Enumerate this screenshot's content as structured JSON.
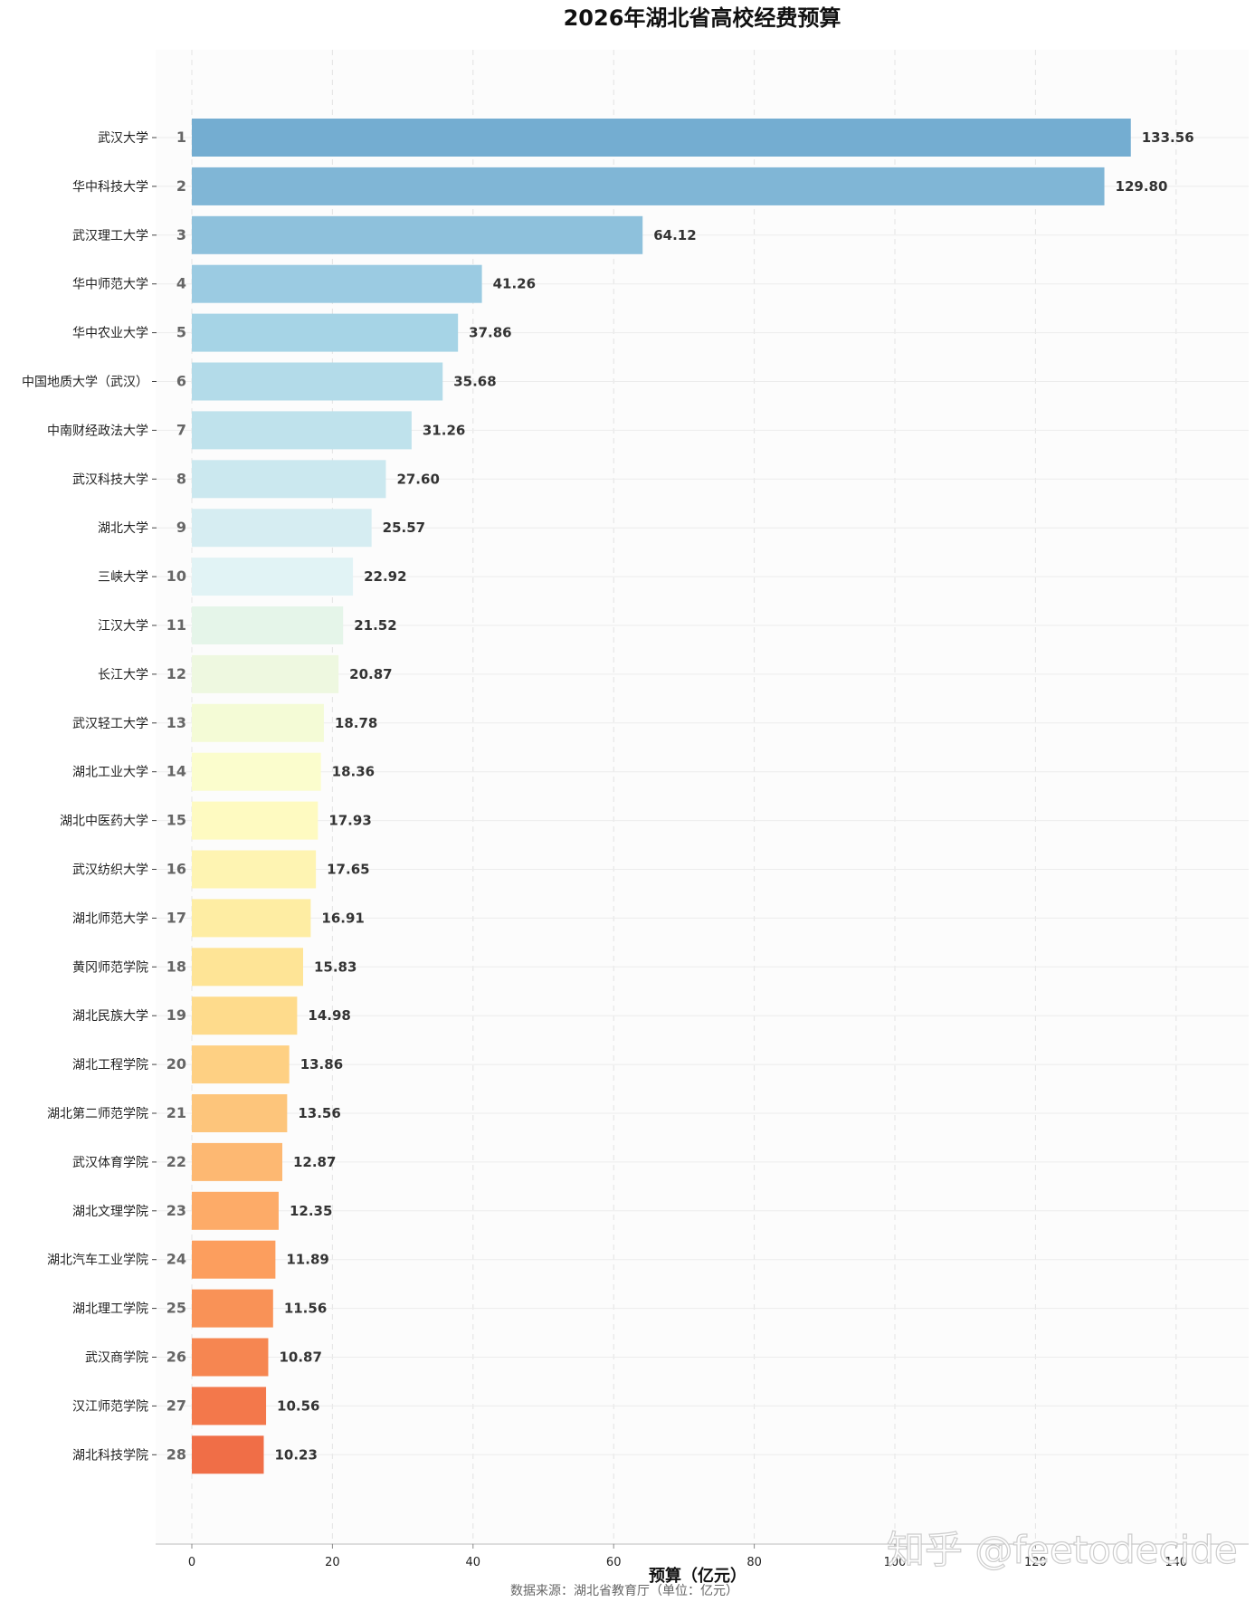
{
  "chart_data": {
    "type": "bar",
    "orientation": "horizontal",
    "title": "2026年湖北省高校经费预算",
    "xlabel": "预算（亿元）",
    "source_note": "数据来源：湖北省教育厅（单位：亿元）",
    "xlim": [
      -4,
      151
    ],
    "xticks": [
      0,
      20,
      40,
      60,
      80,
      100,
      120,
      140
    ],
    "grid": "x-dashed",
    "categories": [
      "武汉大学",
      "华中科技大学",
      "武汉理工大学",
      "华中师范大学",
      "华中农业大学",
      "中国地质大学（武汉）",
      "中南财经政法大学",
      "武汉科技大学",
      "湖北大学",
      "三峡大学",
      "江汉大学",
      "长江大学",
      "武汉轻工大学",
      "湖北工业大学",
      "湖北中医药大学",
      "武汉纺织大学",
      "湖北师范大学",
      "黄冈师范学院",
      "湖北民族大学",
      "湖北工程学院",
      "湖北第二师范学院",
      "武汉体育学院",
      "湖北文理学院",
      "湖北汽车工业学院",
      "湖北理工学院",
      "武汉商学院",
      "汉江师范学院",
      "湖北科技学院"
    ],
    "ranks": [
      "1",
      "2",
      "3",
      "4",
      "5",
      "6",
      "7",
      "8",
      "9",
      "10",
      "11",
      "12",
      "13",
      "14",
      "15",
      "16",
      "17",
      "18",
      "19",
      "20",
      "21",
      "22",
      "23",
      "24",
      "25",
      "26",
      "27",
      "28"
    ],
    "values": [
      133.56,
      129.8,
      64.12,
      41.26,
      37.86,
      35.68,
      31.26,
      27.6,
      25.57,
      22.92,
      21.52,
      20.87,
      18.78,
      18.36,
      17.93,
      17.65,
      16.91,
      15.83,
      14.98,
      13.86,
      13.56,
      12.87,
      12.35,
      11.89,
      11.56,
      10.87,
      10.56,
      10.23
    ],
    "value_labels": [
      "133.56",
      "129.80",
      "64.12",
      "41.26",
      "37.86",
      "35.68",
      "31.26",
      "27.60",
      "25.57",
      "22.92",
      "21.52",
      "20.87",
      "18.78",
      "18.36",
      "17.93",
      "17.65",
      "16.91",
      "15.83",
      "14.98",
      "13.86",
      "13.56",
      "12.87",
      "12.35",
      "11.89",
      "11.56",
      "10.87",
      "10.56",
      "10.23"
    ],
    "colors": [
      "#74add1",
      "#80b6d6",
      "#8ec1dc",
      "#9bcbe2",
      "#a6d4e6",
      "#b3dbe9",
      "#bfe2ec",
      "#cbe8ef",
      "#d6edf2",
      "#e1f3f5",
      "#e5f5e9",
      "#eef8e0",
      "#f4fbd6",
      "#fbfdcd",
      "#fefac1",
      "#fef4b2",
      "#feeda3",
      "#fee496",
      "#fedb8c",
      "#fed083",
      "#fdc57b",
      "#fdb872",
      "#fdab68",
      "#fc9e5e",
      "#f99257",
      "#f68651",
      "#f3784b",
      "#f06e47"
    ]
  },
  "watermark": "知乎 @feetodecide"
}
